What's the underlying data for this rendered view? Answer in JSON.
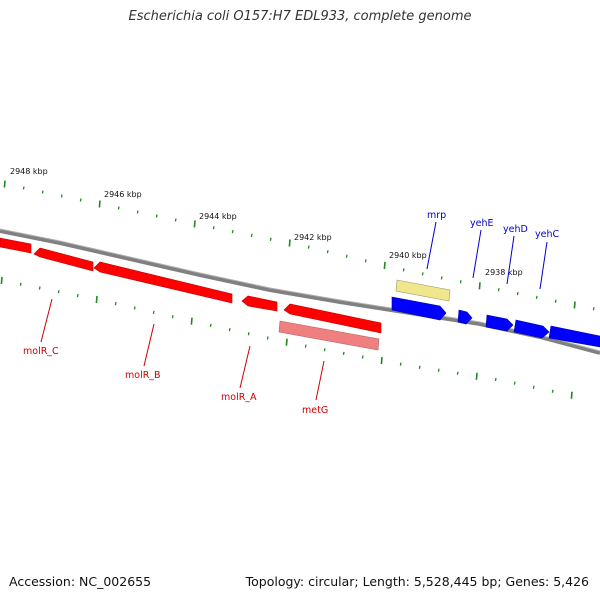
{
  "title": "Escherichia coli O157:H7 EDL933, complete genome",
  "footer": {
    "accession": "Accession: NC_002655",
    "summary": "Topology: circular; Length: 5,528,445 bp; Genes: 5,426"
  },
  "ticks": [
    {
      "label": "2948 kbp"
    },
    {
      "label": "2946 kbp"
    },
    {
      "label": "2944 kbp"
    },
    {
      "label": "2942 kbp"
    },
    {
      "label": "2940 kbp"
    },
    {
      "label": "2938 kbp"
    }
  ],
  "genes": [
    {
      "name": "molR_C",
      "strand": "reverse",
      "color": "#ff0000",
      "kind": "CDS"
    },
    {
      "name": "molR_B",
      "strand": "reverse",
      "color": "#ff0000",
      "kind": "CDS"
    },
    {
      "name": "molR_A",
      "strand": "reverse",
      "color": "#ff0000",
      "kind": "CDS"
    },
    {
      "name": "metG",
      "strand": "reverse",
      "color": "#f08080",
      "kind": "misc"
    },
    {
      "name": "mrp",
      "strand": "forward",
      "color": "#f0e68c",
      "kind": "misc"
    },
    {
      "name": "yehE",
      "strand": "forward",
      "color": "#0000ff",
      "kind": "CDS"
    },
    {
      "name": "yehD",
      "strand": "forward",
      "color": "#0000ff",
      "kind": "CDS"
    },
    {
      "name": "yehC",
      "strand": "forward",
      "color": "#0000ff",
      "kind": "CDS"
    }
  ],
  "colors": {
    "backbone": "#808080",
    "tick": "#1e8a1e",
    "reverse_label": "#cc0000",
    "forward_label": "#0000cc"
  }
}
